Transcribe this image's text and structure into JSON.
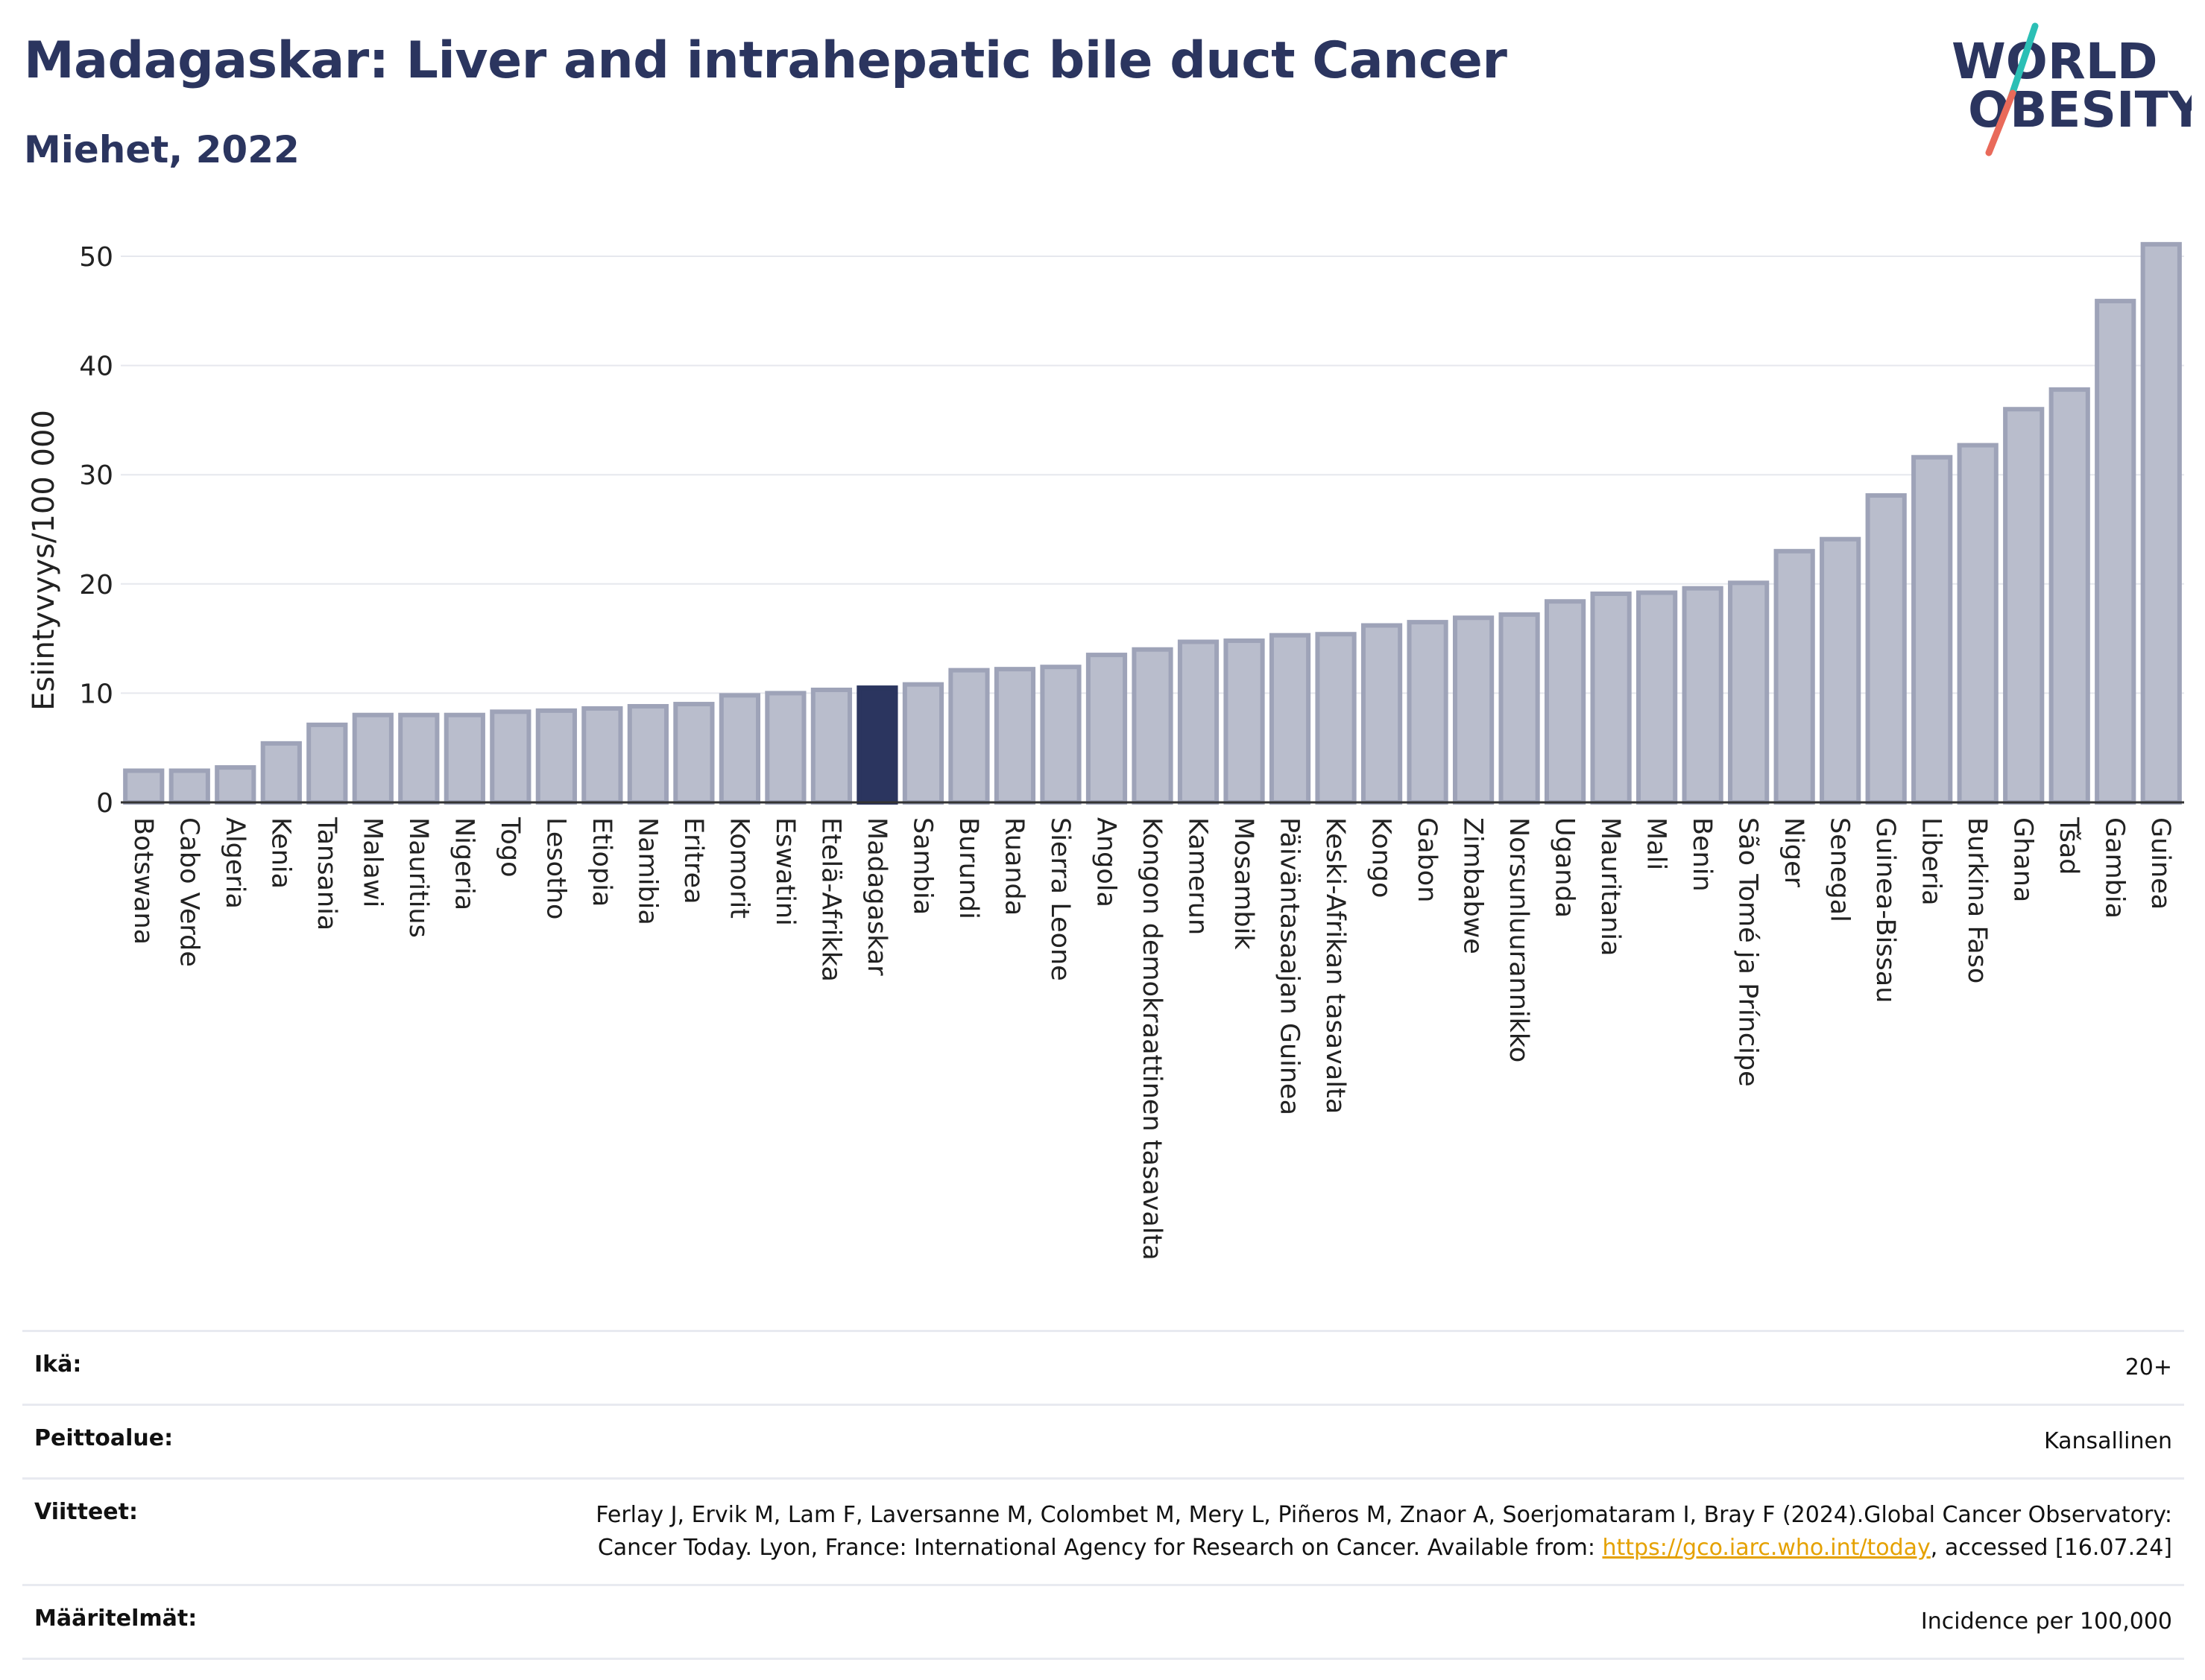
{
  "header": {
    "title": "Madagaskar: Liver and intrahepatic bile duct Cancer",
    "subtitle": "Miehet, 2022"
  },
  "logo": {
    "line1": "WORLD",
    "line2": "OBESITY"
  },
  "colors": {
    "bar": "#b9bdcc",
    "bar_stroke": "#9ea3b8",
    "highlight": "#2b355f",
    "title": "#2b355f",
    "link": "#e5a100"
  },
  "chart_data": {
    "type": "bar",
    "ylabel": "Esiintyvyys/100 000",
    "ylim": [
      0,
      53
    ],
    "yticks": [
      0,
      10,
      20,
      30,
      40,
      50
    ],
    "grid": true,
    "highlight": "Madagaskar",
    "categories": [
      "Botswana",
      "Cabo Verde",
      "Algeria",
      "Kenia",
      "Tansania",
      "Malawi",
      "Mauritius",
      "Nigeria",
      "Togo",
      "Lesotho",
      "Etiopia",
      "Namibia",
      "Eritrea",
      "Komorit",
      "Eswatini",
      "Etelä-Afrikka",
      "Madagaskar",
      "Sambia",
      "Burundi",
      "Ruanda",
      "Sierra Leone",
      "Angola",
      "Kongon demokraattinen tasavalta",
      "Kamerun",
      "Mosambik",
      "Päiväntasaajan Guinea",
      "Keski-Afrikan tasavalta",
      "Kongo",
      "Gabon",
      "Zimbabwe",
      "Norsunluurannikko",
      "Uganda",
      "Mauritania",
      "Mali",
      "Benin",
      "São Tomé ja Príncipe",
      "Niger",
      "Senegal",
      "Guinea-Bissau",
      "Liberia",
      "Burkina Faso",
      "Ghana",
      "Tšad",
      "Gambia",
      "Guinea"
    ],
    "values": [
      2.9,
      2.9,
      3.2,
      5.4,
      7.1,
      8.0,
      8.0,
      8.0,
      8.3,
      8.4,
      8.6,
      8.8,
      9.0,
      9.8,
      10.0,
      10.3,
      10.5,
      10.8,
      12.1,
      12.2,
      12.4,
      13.5,
      14.0,
      14.7,
      14.8,
      15.3,
      15.4,
      16.2,
      16.5,
      16.9,
      17.2,
      18.4,
      19.1,
      19.2,
      19.6,
      20.1,
      23.0,
      24.1,
      28.1,
      31.6,
      32.7,
      36.0,
      37.8,
      45.9,
      51.1
    ]
  },
  "meta": [
    {
      "label": "Ikä:",
      "value": "20+"
    },
    {
      "label": "Peittoalue:",
      "value": "Kansallinen"
    },
    {
      "label": "Viitteet:",
      "value_pre": "Ferlay J, Ervik M, Lam F, Laversanne M, Colombet M, Mery L, Piñeros M, Znaor A, Soerjomataram I, Bray F (2024).Global Cancer Observatory: Cancer Today. Lyon, France: International Agency for Research on Cancer. Available from: ",
      "link": "https://gco.iarc.who.int/today",
      "value_post": ", accessed [16.07.24]"
    },
    {
      "label": "Määritelmät:",
      "value": "Incidence per 100,000"
    }
  ]
}
